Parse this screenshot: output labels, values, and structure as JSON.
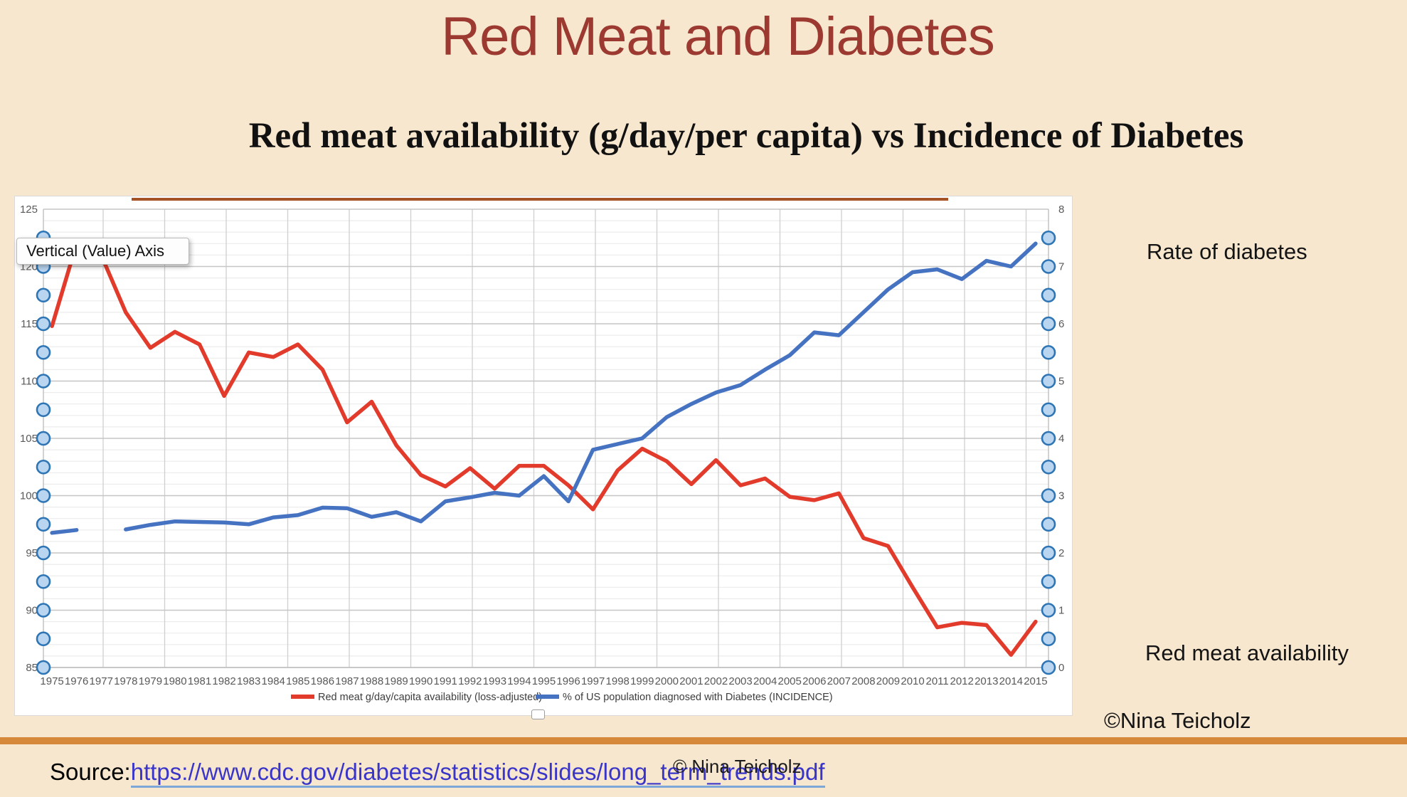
{
  "slide": {
    "title": "Red Meat and Diabetes",
    "subtitle": "Red meat availability (g/day/per capita) vs Incidence of Diabetes",
    "background_color": "#f7e7cf",
    "title_color": "#9c3a31",
    "top_rule_color": "#a65227",
    "bottom_bar_color": "#d6893a"
  },
  "tooltip": {
    "text": "Vertical (Value) Axis"
  },
  "annotations": {
    "rate_of_diabetes": "Rate of diabetes",
    "red_meat_availability": "Red meat availability",
    "copyright_right": "©Nina Teicholz",
    "copyright_overlay": "© Nina Teicholz"
  },
  "source": {
    "label": "Source:",
    "url": "https://www.cdc.gov/diabetes/statistics/slides/long_term_trends.pdf",
    "link_color": "#3a35c9"
  },
  "chart_data": {
    "type": "line",
    "title": "",
    "x": [
      1975,
      1976,
      1977,
      1978,
      1979,
      1980,
      1981,
      1982,
      1983,
      1984,
      1985,
      1986,
      1987,
      1988,
      1989,
      1990,
      1991,
      1992,
      1993,
      1994,
      1995,
      1996,
      1997,
      1998,
      1999,
      2000,
      2001,
      2002,
      2003,
      2004,
      2005,
      2006,
      2007,
      2008,
      2009,
      2010,
      2011,
      2012,
      2013,
      2014,
      2015
    ],
    "series": [
      {
        "name": "Red meat g/day/capita availability (loss-adjusted)",
        "axis": "left",
        "color": "#e23b2c",
        "values": [
          114.8,
          122.0,
          121.0,
          116.0,
          112.9,
          114.3,
          113.2,
          108.7,
          112.5,
          112.1,
          113.2,
          111.0,
          106.4,
          108.2,
          104.4,
          101.8,
          100.8,
          102.4,
          100.6,
          102.6,
          102.6,
          100.9,
          98.8,
          102.2,
          104.1,
          103.0,
          101.0,
          103.1,
          100.9,
          101.5,
          99.9,
          99.6,
          100.2,
          96.3,
          95.6,
          92.0,
          88.5,
          88.9,
          88.7,
          86.1,
          89.0
        ]
      },
      {
        "name": "% of US population diagnosed with Diabetes (INCIDENCE)",
        "axis": "right",
        "color": "#4673c1",
        "values": [
          2.35,
          2.4,
          null,
          2.41,
          2.49,
          2.55,
          2.54,
          2.53,
          2.5,
          2.62,
          2.66,
          2.79,
          2.78,
          2.63,
          2.71,
          2.55,
          2.9,
          2.97,
          3.05,
          3.0,
          3.34,
          2.9,
          3.8,
          3.9,
          4.0,
          4.37,
          4.6,
          4.8,
          4.93,
          5.2,
          5.45,
          5.85,
          5.8,
          6.2,
          6.6,
          6.9,
          6.95,
          6.78,
          7.1,
          7.0,
          7.4
        ]
      }
    ],
    "left_axis": {
      "min": 85,
      "max": 125,
      "tick_step": 5,
      "minor_step": 1,
      "ticks": [
        85,
        90,
        95,
        100,
        105,
        110,
        115,
        120,
        125
      ]
    },
    "right_axis": {
      "min": 0,
      "max": 8,
      "tick_step": 1,
      "ticks": [
        0,
        1,
        2,
        3,
        4,
        5,
        6,
        7,
        8
      ]
    },
    "grid": true,
    "legend_position": "bottom",
    "colors": {
      "major_grid": "#c6c6c6",
      "minor_grid": "#ececec",
      "vert_grid": "#cfcfcf",
      "axis_line": "#bfbfbf",
      "tick_label": "#595959",
      "legend_text": "#3d3d3d"
    }
  },
  "selection": {
    "handle_fill": "#b9d5f0",
    "handle_stroke": "#2e75b6",
    "left_handle_min": 85,
    "left_handle_max": 122.5,
    "left_handle_step": 2.5,
    "right_handle_min": 0,
    "right_handle_max": 7.5,
    "right_handle_step": 0.5
  }
}
